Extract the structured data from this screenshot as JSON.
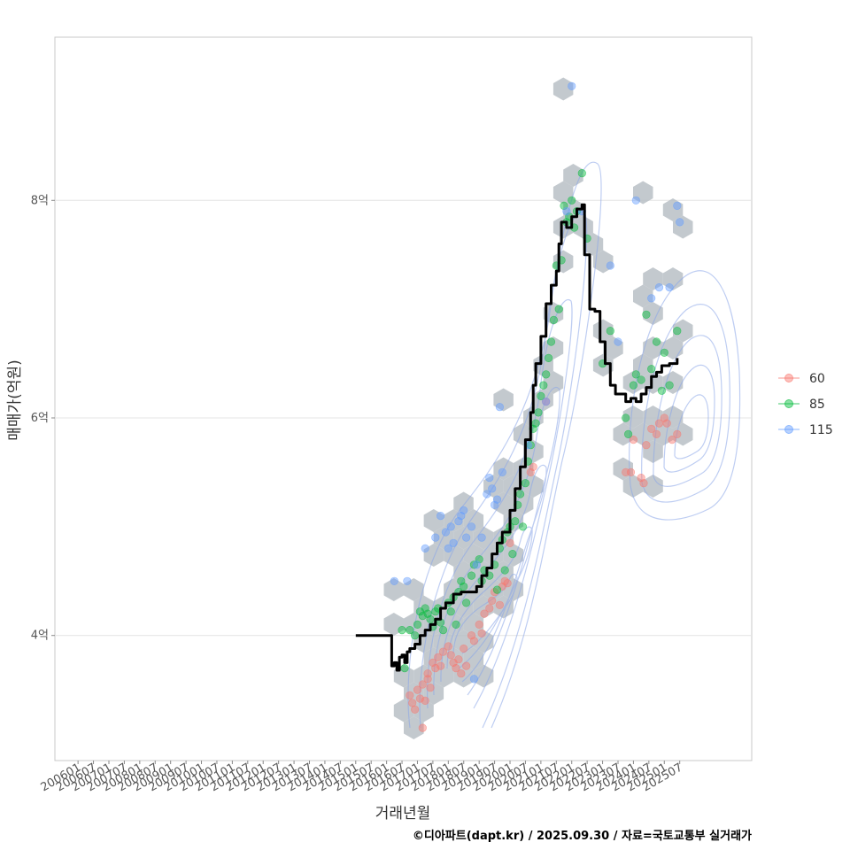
{
  "chart_data": {
    "type": "scatter",
    "xlabel": "거래년월",
    "ylabel": "매매가(억원)",
    "caption": "©디아파트(dapt.kr) / 2025.09.30 / 자료=국토교통부 실거래가",
    "y_unit": "억원",
    "ylim": [
      2.85,
      9.5
    ],
    "yticks": [
      {
        "value": 4,
        "label": "4억"
      },
      {
        "value": 6,
        "label": "6억"
      },
      {
        "value": 8,
        "label": "8억"
      }
    ],
    "xlim": [
      "2005-04",
      "2027-11"
    ],
    "xticks": [
      "200601",
      "200607",
      "200701",
      "200707",
      "200801",
      "200807",
      "200901",
      "200907",
      "201001",
      "201007",
      "201101",
      "201107",
      "201201",
      "201207",
      "201301",
      "201307",
      "201401",
      "201407",
      "201501",
      "201507",
      "201601",
      "201607",
      "201701",
      "201707",
      "201801",
      "201807",
      "201901",
      "201907",
      "202001",
      "202007",
      "202101",
      "202107",
      "202201",
      "202207",
      "202301",
      "202307",
      "202401",
      "202407",
      "202501",
      "202507"
    ],
    "grid": true,
    "legend_position": "right",
    "series": [
      {
        "name": "60",
        "color": "#f8766d",
        "points": [
          [
            "2016-10",
            3.45
          ],
          [
            "2016-11",
            3.38
          ],
          [
            "2016-12",
            3.32
          ],
          [
            "2017-01",
            3.5
          ],
          [
            "2017-02",
            3.42
          ],
          [
            "2017-03",
            3.55
          ],
          [
            "2017-04",
            3.4
          ],
          [
            "2017-05",
            3.6
          ],
          [
            "2017-06",
            3.52
          ],
          [
            "2017-03",
            3.15
          ],
          [
            "2017-05",
            3.65
          ],
          [
            "2017-07",
            3.75
          ],
          [
            "2017-08",
            3.7
          ],
          [
            "2017-09",
            3.8
          ],
          [
            "2017-10",
            3.72
          ],
          [
            "2017-11",
            3.85
          ],
          [
            "2018-01",
            3.9
          ],
          [
            "2018-02",
            3.82
          ],
          [
            "2018-03",
            3.75
          ],
          [
            "2018-04",
            3.7
          ],
          [
            "2018-05",
            3.78
          ],
          [
            "2018-06",
            3.65
          ],
          [
            "2018-07",
            3.88
          ],
          [
            "2018-08",
            3.72
          ],
          [
            "2018-10",
            4.0
          ],
          [
            "2018-11",
            3.95
          ],
          [
            "2019-01",
            4.1
          ],
          [
            "2019-02",
            4.02
          ],
          [
            "2019-03",
            4.2
          ],
          [
            "2019-05",
            4.25
          ],
          [
            "2019-06",
            4.32
          ],
          [
            "2019-07",
            4.4
          ],
          [
            "2019-09",
            4.28
          ],
          [
            "2019-10",
            4.45
          ],
          [
            "2019-11",
            4.5
          ],
          [
            "2019-12",
            4.48
          ],
          [
            "2020-01",
            4.85
          ],
          [
            "2020-09",
            5.5
          ],
          [
            "2020-10",
            5.55
          ],
          [
            "2021-03",
            6.15
          ],
          [
            "2023-10",
            5.5
          ],
          [
            "2023-12",
            5.5
          ],
          [
            "2024-01",
            5.8
          ],
          [
            "2024-04",
            5.45
          ],
          [
            "2024-05",
            5.4
          ],
          [
            "2024-06",
            5.75
          ],
          [
            "2024-08",
            5.9
          ],
          [
            "2024-10",
            5.85
          ],
          [
            "2024-11",
            5.95
          ],
          [
            "2025-01",
            6.0
          ],
          [
            "2025-02",
            5.95
          ],
          [
            "2025-04",
            5.8
          ],
          [
            "2025-06",
            5.85
          ]
        ]
      },
      {
        "name": "85",
        "color": "#00ba38",
        "points": [
          [
            "2016-07",
            4.05
          ],
          [
            "2016-08",
            3.7
          ],
          [
            "2016-10",
            4.05
          ],
          [
            "2016-12",
            4.0
          ],
          [
            "2017-01",
            4.1
          ],
          [
            "2017-02",
            4.22
          ],
          [
            "2017-03",
            4.18
          ],
          [
            "2017-04",
            4.25
          ],
          [
            "2017-05",
            4.2
          ],
          [
            "2017-06",
            4.15
          ],
          [
            "2017-07",
            4.08
          ],
          [
            "2017-08",
            4.22
          ],
          [
            "2017-09",
            4.25
          ],
          [
            "2017-10",
            4.12
          ],
          [
            "2017-11",
            4.05
          ],
          [
            "2018-01",
            4.3
          ],
          [
            "2018-02",
            4.22
          ],
          [
            "2018-03",
            4.35
          ],
          [
            "2018-04",
            4.1
          ],
          [
            "2018-05",
            4.4
          ],
          [
            "2018-06",
            4.5
          ],
          [
            "2018-07",
            4.45
          ],
          [
            "2018-08",
            4.3
          ],
          [
            "2018-10",
            4.55
          ],
          [
            "2018-11",
            4.65
          ],
          [
            "2019-01",
            4.7
          ],
          [
            "2019-02",
            4.5
          ],
          [
            "2019-03",
            4.6
          ],
          [
            "2019-05",
            4.55
          ],
          [
            "2019-07",
            4.65
          ],
          [
            "2019-08",
            4.42
          ],
          [
            "2019-09",
            4.8
          ],
          [
            "2019-10",
            4.88
          ],
          [
            "2019-11",
            4.6
          ],
          [
            "2019-12",
            4.95
          ],
          [
            "2020-01",
            5.0
          ],
          [
            "2020-02",
            4.75
          ],
          [
            "2020-03",
            5.05
          ],
          [
            "2020-04",
            5.2
          ],
          [
            "2020-05",
            5.3
          ],
          [
            "2020-06",
            5.0
          ],
          [
            "2020-07",
            5.4
          ],
          [
            "2020-08",
            5.6
          ],
          [
            "2020-09",
            5.75
          ],
          [
            "2020-10",
            5.9
          ],
          [
            "2020-11",
            5.95
          ],
          [
            "2020-12",
            6.05
          ],
          [
            "2021-01",
            6.2
          ],
          [
            "2021-02",
            6.3
          ],
          [
            "2021-03",
            6.4
          ],
          [
            "2021-04",
            6.55
          ],
          [
            "2021-05",
            6.7
          ],
          [
            "2021-06",
            6.9
          ],
          [
            "2021-07",
            7.4
          ],
          [
            "2021-08",
            7.0
          ],
          [
            "2021-09",
            7.45
          ],
          [
            "2021-10",
            7.95
          ],
          [
            "2021-11",
            7.8
          ],
          [
            "2021-12",
            7.85
          ],
          [
            "2022-01",
            8.0
          ],
          [
            "2022-02",
            7.75
          ],
          [
            "2022-03",
            7.9
          ],
          [
            "2022-05",
            8.25
          ],
          [
            "2022-07",
            7.65
          ],
          [
            "2023-01",
            6.5
          ],
          [
            "2023-04",
            6.8
          ],
          [
            "2023-10",
            6.0
          ],
          [
            "2023-11",
            5.85
          ],
          [
            "2024-01",
            6.3
          ],
          [
            "2024-02",
            6.4
          ],
          [
            "2024-04",
            6.35
          ],
          [
            "2024-06",
            6.95
          ],
          [
            "2024-08",
            6.45
          ],
          [
            "2024-10",
            6.7
          ],
          [
            "2024-12",
            6.25
          ],
          [
            "2025-01",
            6.6
          ],
          [
            "2025-03",
            6.3
          ],
          [
            "2025-06",
            6.8
          ]
        ]
      },
      {
        "name": "115",
        "color": "#619cff",
        "points": [
          [
            "2016-04",
            4.5
          ],
          [
            "2016-09",
            4.5
          ],
          [
            "2017-04",
            4.8
          ],
          [
            "2017-08",
            4.9
          ],
          [
            "2017-10",
            5.1
          ],
          [
            "2017-12",
            4.95
          ],
          [
            "2018-01",
            4.8
          ],
          [
            "2018-02",
            5.0
          ],
          [
            "2018-03",
            4.85
          ],
          [
            "2018-05",
            5.05
          ],
          [
            "2018-06",
            5.1
          ],
          [
            "2018-07",
            5.15
          ],
          [
            "2018-08",
            4.9
          ],
          [
            "2018-10",
            5.0
          ],
          [
            "2018-12",
            4.65
          ],
          [
            "2019-02",
            4.9
          ],
          [
            "2019-04",
            5.3
          ],
          [
            "2019-05",
            5.45
          ],
          [
            "2019-06",
            5.35
          ],
          [
            "2019-07",
            5.2
          ],
          [
            "2019-08",
            5.25
          ],
          [
            "2019-09",
            6.1
          ],
          [
            "2019-10",
            5.5
          ],
          [
            "2020-08",
            5.75
          ],
          [
            "2021-03",
            6.15
          ],
          [
            "2021-11",
            7.9
          ],
          [
            "2022-01",
            9.05
          ],
          [
            "2022-05",
            7.9
          ],
          [
            "2023-04",
            7.4
          ],
          [
            "2023-07",
            6.7
          ],
          [
            "2024-02",
            8.0
          ],
          [
            "2024-08",
            7.1
          ],
          [
            "2024-11",
            7.2
          ],
          [
            "2025-03",
            7.2
          ],
          [
            "2025-06",
            7.95
          ],
          [
            "2025-07",
            7.8
          ],
          [
            "2018-11",
            3.6
          ]
        ]
      }
    ],
    "median_line": {
      "color": "#000000",
      "points": [
        [
          "2015-01",
          4.0
        ],
        [
          "2015-10",
          4.0
        ],
        [
          "2016-02",
          4.0
        ],
        [
          "2016-03",
          3.72
        ],
        [
          "2016-04",
          3.75
        ],
        [
          "2016-05",
          3.68
        ],
        [
          "2016-06",
          3.8
        ],
        [
          "2016-07",
          3.82
        ],
        [
          "2016-08",
          3.75
        ],
        [
          "2016-09",
          3.85
        ],
        [
          "2016-10",
          3.88
        ],
        [
          "2016-12",
          3.92
        ],
        [
          "2017-02",
          4.0
        ],
        [
          "2017-04",
          4.05
        ],
        [
          "2017-06",
          4.1
        ],
        [
          "2017-08",
          4.15
        ],
        [
          "2017-10",
          4.25
        ],
        [
          "2017-12",
          4.3
        ],
        [
          "2018-03",
          4.38
        ],
        [
          "2018-06",
          4.4
        ],
        [
          "2018-09",
          4.4
        ],
        [
          "2018-12",
          4.45
        ],
        [
          "2019-02",
          4.55
        ],
        [
          "2019-04",
          4.62
        ],
        [
          "2019-06",
          4.75
        ],
        [
          "2019-08",
          4.85
        ],
        [
          "2019-10",
          4.95
        ],
        [
          "2020-01",
          5.15
        ],
        [
          "2020-03",
          5.35
        ],
        [
          "2020-05",
          5.55
        ],
        [
          "2020-07",
          5.8
        ],
        [
          "2020-09",
          6.05
        ],
        [
          "2020-10",
          6.3
        ],
        [
          "2020-11",
          6.5
        ],
        [
          "2021-01",
          6.75
        ],
        [
          "2021-03",
          7.05
        ],
        [
          "2021-05",
          7.22
        ],
        [
          "2021-07",
          7.35
        ],
        [
          "2021-08",
          7.6
        ],
        [
          "2021-09",
          7.8
        ],
        [
          "2021-11",
          7.75
        ],
        [
          "2022-01",
          7.85
        ],
        [
          "2022-03",
          7.92
        ],
        [
          "2022-05",
          7.96
        ],
        [
          "2022-06",
          7.5
        ],
        [
          "2022-07",
          7.5
        ],
        [
          "2022-08",
          7.0
        ],
        [
          "2022-10",
          6.98
        ],
        [
          "2022-12",
          6.7
        ],
        [
          "2023-02",
          6.5
        ],
        [
          "2023-04",
          6.3
        ],
        [
          "2023-06",
          6.22
        ],
        [
          "2023-08",
          6.22
        ],
        [
          "2023-10",
          6.15
        ],
        [
          "2023-12",
          6.18
        ],
        [
          "2024-02",
          6.15
        ],
        [
          "2024-04",
          6.22
        ],
        [
          "2024-06",
          6.28
        ],
        [
          "2024-08",
          6.38
        ],
        [
          "2024-10",
          6.42
        ],
        [
          "2024-12",
          6.48
        ],
        [
          "2025-03",
          6.5
        ],
        [
          "2025-06",
          6.55
        ]
      ]
    }
  }
}
